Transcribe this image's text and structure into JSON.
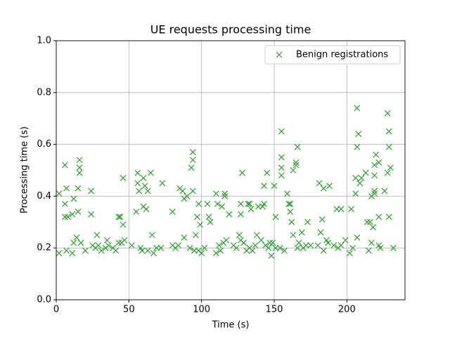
{
  "chart_data": {
    "type": "scatter",
    "title": "UE requests processing time",
    "xlabel": "Time (s)",
    "ylabel": "Processing time (s)",
    "xlim": [
      0,
      240
    ],
    "ylim": [
      0,
      1
    ],
    "xticks": [
      0,
      50,
      100,
      150,
      200
    ],
    "yticks": [
      {
        "value": 0,
        "label": "0.0"
      },
      0.2,
      0.4,
      0.6,
      0.8,
      {
        "value": 1,
        "label": "1.0"
      }
    ],
    "grid": true,
    "legend": "upper right",
    "series": [
      {
        "name": "Benign registrations",
        "color": "#2ca02c",
        "marker": "x",
        "x": [
          2,
          2,
          6,
          6,
          7,
          6,
          8,
          7,
          11,
          11,
          12,
          12,
          14,
          15,
          15,
          16,
          16,
          16,
          17,
          20,
          24,
          24,
          25,
          27,
          28,
          29,
          31,
          34,
          35,
          36,
          39,
          41,
          43,
          43,
          44,
          45,
          46,
          46,
          47,
          52,
          55,
          56,
          56,
          57,
          58,
          59,
          60,
          60,
          61,
          62,
          63,
          63,
          65,
          66,
          67,
          69,
          72,
          73,
          80,
          80,
          82,
          84,
          85,
          87,
          88,
          88,
          90,
          92,
          93,
          94,
          94,
          94,
          95,
          96,
          97,
          98,
          98,
          99,
          100,
          102,
          104,
          105,
          106,
          110,
          110,
          111,
          112,
          113,
          114,
          115,
          116,
          116,
          117,
          119,
          122,
          124,
          126,
          127,
          127,
          127,
          128,
          129,
          131,
          132,
          133,
          133,
          134,
          135,
          137,
          138,
          139,
          141,
          142,
          143,
          143,
          144,
          145,
          146,
          147,
          148,
          149,
          150,
          151,
          151,
          154,
          155,
          155,
          155,
          155,
          157,
          159,
          160,
          161,
          161,
          162,
          163,
          163,
          165,
          165,
          166,
          166,
          167,
          169,
          170,
          172,
          173,
          175,
          180,
          181,
          182,
          183,
          184,
          184,
          186,
          187,
          188,
          191,
          193,
          194,
          196,
          196,
          199,
          202,
          203,
          204,
          206,
          206,
          207,
          207,
          208,
          207,
          209,
          210,
          213,
          214,
          215,
          216,
          217,
          217,
          218,
          219,
          219,
          219,
          219,
          220,
          222,
          222,
          222,
          223,
          226,
          228,
          228,
          229,
          229,
          229,
          230,
          232
        ],
        "values": [
          0.18,
          0.41,
          0.52,
          0.37,
          0.43,
          0.32,
          0.32,
          0.19,
          0.18,
          0.33,
          0.39,
          0.22,
          0.24,
          0.34,
          0.43,
          0.54,
          0.51,
          0.49,
          0.22,
          0.19,
          0.42,
          0.33,
          0.21,
          0.2,
          0.25,
          0.21,
          0.19,
          0.2,
          0.23,
          0.21,
          0.2,
          0.19,
          0.32,
          0.22,
          0.32,
          0.22,
          0.29,
          0.47,
          0.23,
          0.21,
          0.34,
          0.49,
          0.45,
          0.42,
          0.2,
          0.19,
          0.47,
          0.36,
          0.44,
          0.35,
          0.42,
          0.19,
          0.49,
          0.25,
          0.18,
          0.2,
          0.2,
          0.45,
          0.34,
          0.21,
          0.2,
          0.21,
          0.43,
          0.42,
          0.39,
          0.24,
          0.4,
          0.2,
          0.51,
          0.57,
          0.54,
          0.42,
          0.19,
          0.25,
          0.32,
          0.19,
          0.37,
          0.29,
          0.18,
          0.2,
          0.37,
          0.32,
          0.3,
          0.41,
          0.18,
          0.37,
          0.21,
          0.19,
          0.36,
          0.22,
          0.4,
          0.41,
          0.23,
          0.33,
          0.21,
          0.2,
          0.25,
          0.23,
          0.37,
          0.33,
          0.49,
          0.22,
          0.19,
          0.37,
          0.2,
          0.37,
          0.35,
          0.19,
          0.21,
          0.25,
          0.36,
          0.23,
          0.36,
          0.37,
          0.44,
          0.21,
          0.49,
          0.2,
          0.22,
          0.17,
          0.22,
          0.44,
          0.32,
          0.2,
          0.2,
          0.65,
          0.55,
          0.51,
          0.48,
          0.19,
          0.41,
          0.37,
          0.37,
          0.34,
          0.3,
          0.5,
          0.25,
          0.52,
          0.53,
          0.59,
          0.2,
          0.22,
          0.26,
          0.2,
          0.21,
          0.3,
          0.21,
          0.21,
          0.45,
          0.26,
          0.31,
          0.19,
          0.43,
          0.23,
          0.22,
          0.44,
          0.21,
          0.35,
          0.2,
          0.35,
          0.21,
          0.23,
          0.18,
          0.35,
          0.2,
          0.47,
          0.41,
          0.24,
          0.74,
          0.64,
          0.59,
          0.45,
          0.47,
          0.49,
          0.3,
          0.19,
          0.3,
          0.22,
          0.4,
          0.28,
          0.41,
          0.42,
          0.48,
          0.52,
          0.56,
          0.32,
          0.21,
          0.53,
          0.2,
          0.42,
          0.49,
          0.72,
          0.32,
          0.65,
          0.59,
          0.51,
          0.2
        ]
      }
    ]
  }
}
